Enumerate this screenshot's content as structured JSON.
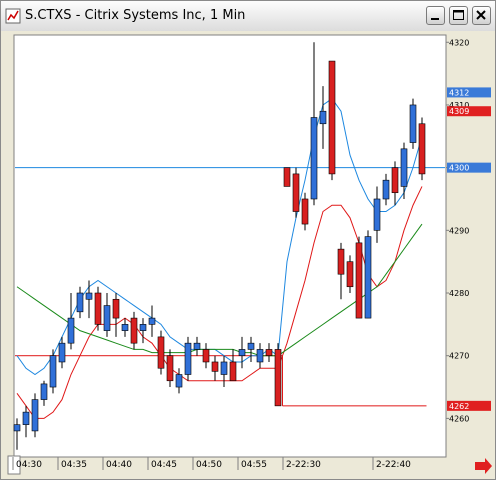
{
  "chart_data": {
    "type": "candlestick",
    "title": "S.CTXS - Citrix Systems Inc, 1 Min",
    "categories": [
      "04:30",
      null,
      null,
      null,
      null,
      "04:35",
      null,
      null,
      null,
      null,
      "04:40",
      null,
      null,
      null,
      null,
      "04:45",
      null,
      null,
      null,
      null,
      "04:50",
      null,
      null,
      null,
      null,
      "04:55",
      null,
      null,
      null,
      null,
      "2-22:30",
      null,
      null,
      null,
      null,
      null,
      null,
      null,
      null,
      null,
      "2-22:40",
      null,
      null,
      null,
      null,
      null
    ],
    "open": [
      4258,
      4259,
      4258,
      4263,
      4265,
      4269,
      4272,
      4277,
      4279,
      4280,
      4274,
      4279,
      4274,
      4276,
      4274,
      4275,
      4273,
      4270,
      4265,
      4267,
      4271,
      4271,
      4269,
      4267,
      4269,
      4270,
      4271,
      4269,
      4271,
      4271,
      4300,
      4299,
      4295,
      4295,
      4307,
      4317,
      4287,
      4285,
      4288,
      4276,
      4290,
      4295,
      4300,
      4297,
      4304,
      4307
    ],
    "high": [
      4260,
      4262,
      4264,
      4266,
      4271,
      4273,
      4280,
      4281,
      4282,
      4281,
      4280,
      4280,
      4276,
      4277,
      4276,
      4278,
      4274,
      4271,
      4268,
      4273,
      4273,
      4272,
      4270,
      4270,
      4271,
      4273,
      4273,
      4272,
      4272,
      4272,
      4300,
      4300,
      4296,
      4320,
      4313,
      4317,
      4288,
      4286,
      4289,
      4290,
      4297,
      4299,
      4301,
      4304,
      4311,
      4308
    ],
    "low": [
      4255,
      4257,
      4257,
      4262,
      4264,
      4268,
      4271,
      4276,
      4276,
      4274,
      4273,
      4273,
      4273,
      4271,
      4272,
      4273,
      4267,
      4265,
      4264,
      4266,
      4270,
      4268,
      4266,
      4265,
      4266,
      4268,
      4269,
      4268,
      4269,
      4262,
      4297,
      4292,
      4290,
      4294,
      4303,
      4298,
      4279,
      4280,
      4276,
      4276,
      4288,
      4294,
      4294,
      4295,
      4303,
      4298
    ],
    "close": [
      4259,
      4261,
      4263,
      4265.5,
      4270,
      4272,
      4276,
      4280,
      4280,
      4275,
      4278,
      4276,
      4275,
      4272,
      4275,
      4276,
      4268,
      4266,
      4267,
      4272,
      4272,
      4269,
      4267.5,
      4269,
      4266,
      4271,
      4272,
      4271,
      4270,
      4262,
      4297,
      4293,
      4291,
      4308,
      4309,
      4299,
      4283,
      4281,
      4276,
      4289,
      4295,
      4298,
      4296,
      4303,
      4310,
      4299
    ],
    "up_color": "#3070d8",
    "down_color": "#d82020",
    "indicators": [
      {
        "color": "#1e88e0",
        "values": [
          4270,
          4268,
          4267,
          4268,
          4270,
          4273,
          4276,
          4279,
          4281,
          4282,
          4281,
          4280,
          4279,
          4278,
          4277,
          4276,
          4275,
          4273,
          4272,
          4271,
          4271,
          4271,
          4271,
          4270,
          4269,
          4269,
          4270,
          4270,
          4271,
          4270,
          4285,
          4292,
          4298,
          4305,
          4310,
          4311,
          4309,
          4302,
          4298,
          4295,
          4293,
          4293,
          4294,
          4296,
          4300,
          4305
        ]
      },
      {
        "color": "#e01818",
        "values": [
          4264,
          4262,
          4260,
          4260,
          4261,
          4263,
          4267,
          4270,
          4273,
          4275,
          4275,
          4275,
          4276,
          4275,
          4273,
          4272,
          4270,
          4268,
          4267,
          4266,
          4266,
          4266,
          4266,
          4266,
          4266,
          4266,
          4267,
          4268,
          4268,
          4268,
          4272,
          4277,
          4282,
          4288,
          4293,
          4294,
          4294,
          4292,
          4288,
          4283,
          4281,
          4282,
          4285,
          4290,
          4294,
          4297
        ]
      },
      {
        "color": "#1a8a1a",
        "values": [
          4281,
          4280,
          4279,
          4278,
          4277,
          4276,
          4275,
          4274,
          4273.5,
          4273,
          4272.5,
          4272,
          4271.5,
          4271,
          4271,
          4270.5,
          4270.5,
          4270.5,
          4270.5,
          4270.5,
          4271,
          4271,
          4271,
          4271,
          4271,
          4270.5,
          4270.5,
          4270,
          4270,
          4270,
          4271,
          4272,
          4273,
          4274,
          4275,
          4276,
          4277,
          4278,
          4279,
          4280,
          4281,
          4283,
          4285,
          4287,
          4289,
          4291
        ]
      }
    ],
    "step_line": {
      "color": "#e01818",
      "values": [
        4270,
        4270,
        4270,
        4270,
        4270,
        4270,
        4270,
        4270,
        4270,
        4270,
        4270,
        4270,
        4270,
        4270,
        4270,
        4270,
        4270,
        4270,
        4270,
        4270,
        4270,
        4270,
        4270,
        4270,
        4270,
        4270,
        4270,
        4270,
        4270,
        4270,
        4262,
        4262,
        4262,
        4262,
        4262,
        4262,
        4262,
        4262,
        4262,
        4262,
        4262,
        4262,
        4262,
        4262,
        4262,
        4262
      ]
    },
    "ref_lines": [
      {
        "value": 4300,
        "color": "#1e88e0"
      }
    ],
    "price_markers": [
      {
        "value": 4312,
        "color": "#3a7ad8"
      },
      {
        "value": 4309,
        "color": "#e02020"
      },
      {
        "value": 4300,
        "color": "#3a7ad8"
      },
      {
        "value": 4262,
        "color": "#e02020"
      }
    ],
    "ylim": [
      4254,
      4321
    ],
    "yticks": [
      4260,
      4270,
      4280,
      4290,
      4300,
      4310,
      4320
    ],
    "y_axis_side": "right"
  }
}
